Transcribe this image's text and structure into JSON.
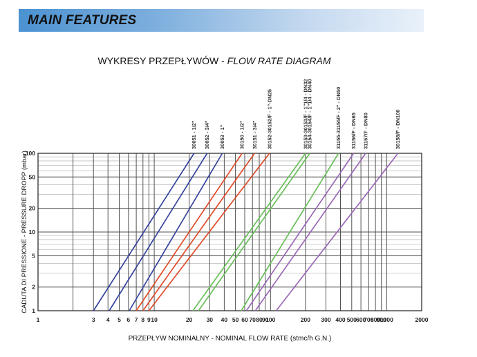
{
  "header": {
    "title": "MAIN FEATURES"
  },
  "chart_title": {
    "plain": "WYKRESY PRZEPŁYWÓW - ",
    "italic": "FLOW RATE DIAGRAM"
  },
  "chart_data": {
    "type": "line",
    "title": "WYKRESY PRZEPŁYWÓW - FLOW RATE DIAGRAM",
    "x_axis": {
      "label": "PRZEPŁYW NOMINALNY - NOMINAL FLOW RATE (stmc/h G.N.)",
      "scale": "log",
      "min": 1,
      "max": 2000,
      "tick_labels": [
        1,
        3,
        4,
        5,
        6,
        7,
        8,
        9,
        10,
        20,
        30,
        40,
        50,
        60,
        70,
        80,
        90,
        100,
        200,
        300,
        400,
        500,
        600,
        700,
        800,
        900,
        1000,
        2000
      ]
    },
    "y_axis": {
      "label": "CADUTA DI PRESSIONE - PRESSURE DROPP (mbar)",
      "scale": "log",
      "min": 1,
      "max": 100,
      "tick_labels": [
        1,
        2,
        5,
        10,
        20,
        50,
        100
      ],
      "minor_gridlines": [
        3,
        4,
        6,
        7,
        8,
        9,
        30,
        40,
        60,
        70,
        80,
        90
      ]
    },
    "grid": true,
    "legend_position": "labels-rotated-above-plot",
    "series": [
      {
        "label": "30051 - 1/2\"",
        "color": "#34429e",
        "x_at_1mbar": 3.0,
        "x_at_100mbar": 22
      },
      {
        "label": "30052 - 3/4\"",
        "color": "#34429e",
        "x_at_1mbar": 4.1,
        "x_at_100mbar": 28.5
      },
      {
        "label": "30053 - 1\"",
        "color": "#34429e",
        "x_at_1mbar": 6.1,
        "x_at_100mbar": 38.5
      },
      {
        "label": "30150 - 1/2\"",
        "color": "#df4a29",
        "x_at_1mbar": 7.0,
        "x_at_100mbar": 57
      },
      {
        "label": "30151 - 3/4\"",
        "color": "#df4a29",
        "x_at_1mbar": 8.0,
        "x_at_100mbar": 73
      },
      {
        "label": "30152-30152/F - 1\"-DN25",
        "color": "#df4a29",
        "x_at_1mbar": 9.0,
        "x_at_100mbar": 98
      },
      {
        "label": "30153-30153/F - 1\"1/4 - DN32",
        "color": "#67bf57",
        "x_at_1mbar": 21.5,
        "x_at_100mbar": 200
      },
      {
        "label": "30154-30154/F - 1\"1/4 - DN40",
        "color": "#67bf57",
        "x_at_1mbar": 24,
        "x_at_100mbar": 218
      },
      {
        "label": "31155-31155/F - 2\" - DN50",
        "color": "#67bf57",
        "x_at_1mbar": 56,
        "x_at_100mbar": 385
      },
      {
        "label": "31156/F - DN65",
        "color": "#9a68b6",
        "x_at_1mbar": 62,
        "x_at_100mbar": 520
      },
      {
        "label": "31157/F - DN80",
        "color": "#9a68b6",
        "x_at_1mbar": 74,
        "x_at_100mbar": 660
      },
      {
        "label": "30158/F - DN100",
        "color": "#9a68b6",
        "x_at_1mbar": 112,
        "x_at_100mbar": 1250
      }
    ],
    "colors": {
      "group_blue": "#34429e",
      "group_red": "#df4a29",
      "group_green": "#67bf57",
      "group_purple": "#9a68b6",
      "grid_major": "#525252",
      "grid_minor": "#c4c4c4",
      "plot_border": "#2f2f2f",
      "text": "#222222"
    }
  }
}
